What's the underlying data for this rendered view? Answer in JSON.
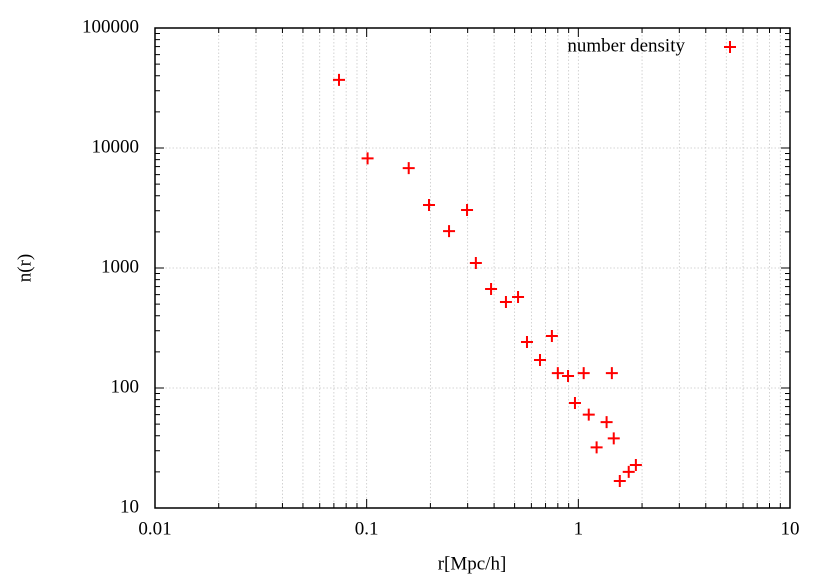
{
  "chart_data": {
    "type": "scatter",
    "x_label": "r[Mpc/h]",
    "y_label": "n(r)",
    "log_x": true,
    "log_y": true,
    "grid": true,
    "legend": "upper right",
    "xlim": [
      0.01,
      10
    ],
    "xticks": [
      0.01,
      0.1,
      1,
      10
    ],
    "ylim": [
      10,
      100000
    ],
    "yticks": [
      10,
      100,
      1000,
      10000,
      100000
    ],
    "series": [
      {
        "name": "number density",
        "color": "#ff0000",
        "x": [
          0.074,
          0.101,
          0.158,
          0.197,
          0.245,
          0.298,
          0.328,
          0.387,
          0.455,
          0.519,
          0.572,
          0.659,
          0.75,
          0.8,
          0.894,
          0.964,
          1.06,
          1.12,
          1.22,
          1.36,
          1.44,
          1.47,
          1.57,
          1.73,
          1.87
        ],
        "values": [
          37000,
          8200,
          6800,
          3350,
          2030,
          3040,
          1100,
          668,
          521,
          573,
          242,
          171,
          271,
          133,
          126,
          75,
          133,
          60,
          32,
          52,
          133,
          38,
          16.8,
          20,
          22.8
        ]
      }
    ]
  }
}
